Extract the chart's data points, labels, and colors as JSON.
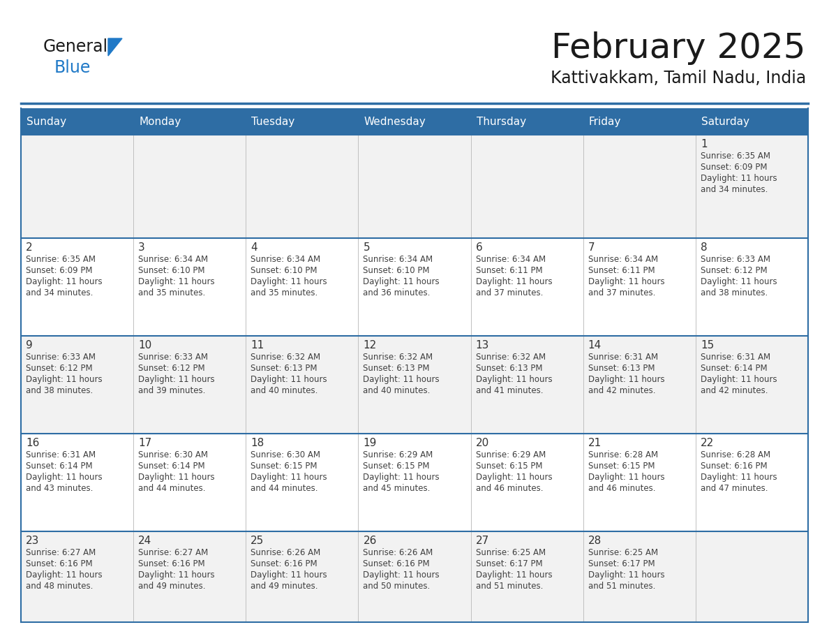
{
  "title": "February 2025",
  "subtitle": "Kattivakkam, Tamil Nadu, India",
  "days_of_week": [
    "Sunday",
    "Monday",
    "Tuesday",
    "Wednesday",
    "Thursday",
    "Friday",
    "Saturday"
  ],
  "header_bg": "#2E6DA4",
  "header_text": "#FFFFFF",
  "cell_bg_odd": "#F2F2F2",
  "cell_bg_even": "#FFFFFF",
  "row_border_color": "#2E6DA4",
  "col_border_color": "#C0C0C0",
  "day_num_color": "#333333",
  "info_color": "#404040",
  "title_color": "#1a1a1a",
  "logo_general_color": "#1a1a1a",
  "logo_blue_color": "#2079C7",
  "cal_data": [
    [
      null,
      null,
      null,
      null,
      null,
      null,
      {
        "day": 1,
        "sunrise": "6:35 AM",
        "sunset": "6:09 PM",
        "daylight": "11 hours and 34 minutes."
      }
    ],
    [
      {
        "day": 2,
        "sunrise": "6:35 AM",
        "sunset": "6:09 PM",
        "daylight": "11 hours and 34 minutes."
      },
      {
        "day": 3,
        "sunrise": "6:34 AM",
        "sunset": "6:10 PM",
        "daylight": "11 hours and 35 minutes."
      },
      {
        "day": 4,
        "sunrise": "6:34 AM",
        "sunset": "6:10 PM",
        "daylight": "11 hours and 35 minutes."
      },
      {
        "day": 5,
        "sunrise": "6:34 AM",
        "sunset": "6:10 PM",
        "daylight": "11 hours and 36 minutes."
      },
      {
        "day": 6,
        "sunrise": "6:34 AM",
        "sunset": "6:11 PM",
        "daylight": "11 hours and 37 minutes."
      },
      {
        "day": 7,
        "sunrise": "6:34 AM",
        "sunset": "6:11 PM",
        "daylight": "11 hours and 37 minutes."
      },
      {
        "day": 8,
        "sunrise": "6:33 AM",
        "sunset": "6:12 PM",
        "daylight": "11 hours and 38 minutes."
      }
    ],
    [
      {
        "day": 9,
        "sunrise": "6:33 AM",
        "sunset": "6:12 PM",
        "daylight": "11 hours and 38 minutes."
      },
      {
        "day": 10,
        "sunrise": "6:33 AM",
        "sunset": "6:12 PM",
        "daylight": "11 hours and 39 minutes."
      },
      {
        "day": 11,
        "sunrise": "6:32 AM",
        "sunset": "6:13 PM",
        "daylight": "11 hours and 40 minutes."
      },
      {
        "day": 12,
        "sunrise": "6:32 AM",
        "sunset": "6:13 PM",
        "daylight": "11 hours and 40 minutes."
      },
      {
        "day": 13,
        "sunrise": "6:32 AM",
        "sunset": "6:13 PM",
        "daylight": "11 hours and 41 minutes."
      },
      {
        "day": 14,
        "sunrise": "6:31 AM",
        "sunset": "6:13 PM",
        "daylight": "11 hours and 42 minutes."
      },
      {
        "day": 15,
        "sunrise": "6:31 AM",
        "sunset": "6:14 PM",
        "daylight": "11 hours and 42 minutes."
      }
    ],
    [
      {
        "day": 16,
        "sunrise": "6:31 AM",
        "sunset": "6:14 PM",
        "daylight": "11 hours and 43 minutes."
      },
      {
        "day": 17,
        "sunrise": "6:30 AM",
        "sunset": "6:14 PM",
        "daylight": "11 hours and 44 minutes."
      },
      {
        "day": 18,
        "sunrise": "6:30 AM",
        "sunset": "6:15 PM",
        "daylight": "11 hours and 44 minutes."
      },
      {
        "day": 19,
        "sunrise": "6:29 AM",
        "sunset": "6:15 PM",
        "daylight": "11 hours and 45 minutes."
      },
      {
        "day": 20,
        "sunrise": "6:29 AM",
        "sunset": "6:15 PM",
        "daylight": "11 hours and 46 minutes."
      },
      {
        "day": 21,
        "sunrise": "6:28 AM",
        "sunset": "6:15 PM",
        "daylight": "11 hours and 46 minutes."
      },
      {
        "day": 22,
        "sunrise": "6:28 AM",
        "sunset": "6:16 PM",
        "daylight": "11 hours and 47 minutes."
      }
    ],
    [
      {
        "day": 23,
        "sunrise": "6:27 AM",
        "sunset": "6:16 PM",
        "daylight": "11 hours and 48 minutes."
      },
      {
        "day": 24,
        "sunrise": "6:27 AM",
        "sunset": "6:16 PM",
        "daylight": "11 hours and 49 minutes."
      },
      {
        "day": 25,
        "sunrise": "6:26 AM",
        "sunset": "6:16 PM",
        "daylight": "11 hours and 49 minutes."
      },
      {
        "day": 26,
        "sunrise": "6:26 AM",
        "sunset": "6:16 PM",
        "daylight": "11 hours and 50 minutes."
      },
      {
        "day": 27,
        "sunrise": "6:25 AM",
        "sunset": "6:17 PM",
        "daylight": "11 hours and 51 minutes."
      },
      {
        "day": 28,
        "sunrise": "6:25 AM",
        "sunset": "6:17 PM",
        "daylight": "11 hours and 51 minutes."
      },
      null
    ]
  ],
  "num_rows": 5,
  "num_cols": 7
}
